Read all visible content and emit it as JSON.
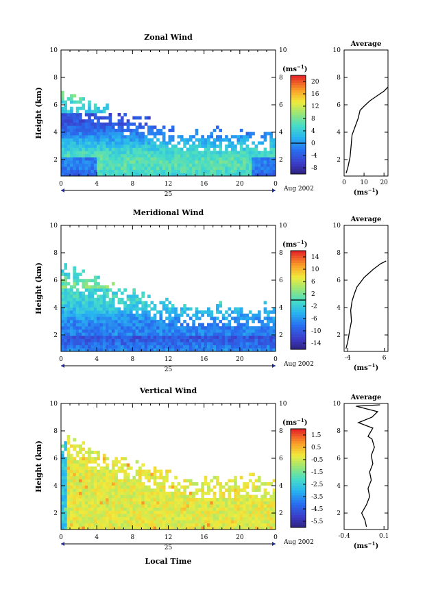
{
  "figure": {
    "xlabel": "Local Time",
    "date_label": "Aug 2002",
    "day_label": "25",
    "colorbar_unit": "(ms",
    "colorbar_exp": "−1",
    "avg_unit": "(ms",
    "avg_exp": "−1",
    "ylabel": "Height (km)"
  },
  "chart_data": [
    {
      "type": "heatmap",
      "title": "Zonal Wind",
      "ylabel": "Height (km)",
      "xlabel": "Local Time",
      "x_ticks": [
        "0",
        "4",
        "8",
        "12",
        "16",
        "20",
        "0"
      ],
      "y_ticks": [
        "2",
        "4",
        "6",
        "8",
        "10"
      ],
      "xlim": [
        0,
        24
      ],
      "ylim": [
        0.8,
        10
      ],
      "colorbar": {
        "ticks": [
          "20",
          "16",
          "12",
          "8",
          "4",
          "0",
          "-4",
          "-8"
        ],
        "range": [
          -10,
          22
        ],
        "contour_level": 0
      },
      "average_profile": {
        "title": "Average",
        "x_ticks": [
          "0",
          "10",
          "20"
        ],
        "xlim": [
          0,
          22
        ],
        "points": [
          [
            1,
            1.0
          ],
          [
            2,
            1.5
          ],
          [
            3,
            2.2
          ],
          [
            3.5,
            3.0
          ],
          [
            4,
            3.8
          ],
          [
            5.5,
            4.4
          ],
          [
            7,
            5.0
          ],
          [
            8,
            5.6
          ],
          [
            10,
            5.9
          ],
          [
            13,
            6.3
          ],
          [
            16,
            6.6
          ],
          [
            20,
            7.0
          ],
          [
            22,
            7.3
          ]
        ]
      }
    },
    {
      "type": "heatmap",
      "title": "Meridional Wind",
      "ylabel": "Height (km)",
      "xlabel": "Local Time",
      "x_ticks": [
        "0",
        "4",
        "8",
        "12",
        "16",
        "20",
        "0"
      ],
      "y_ticks": [
        "2",
        "4",
        "6",
        "8",
        "10"
      ],
      "xlim": [
        0,
        24
      ],
      "ylim": [
        0.8,
        10
      ],
      "colorbar": {
        "ticks": [
          "14",
          "10",
          "6",
          "2",
          "-2",
          "-6",
          "-10",
          "-14"
        ],
        "range": [
          -16,
          16
        ],
        "contour_level": 0
      },
      "average_profile": {
        "title": "Average",
        "x_ticks": [
          "-4",
          "6"
        ],
        "xlim": [
          -5,
          7
        ],
        "points": [
          [
            -4.5,
            1.0
          ],
          [
            -4,
            1.5
          ],
          [
            -3.5,
            2.3
          ],
          [
            -3,
            3.0
          ],
          [
            -3.2,
            3.8
          ],
          [
            -2.8,
            4.5
          ],
          [
            -2.2,
            5.0
          ],
          [
            -1.5,
            5.5
          ],
          [
            0.5,
            6.2
          ],
          [
            3,
            6.8
          ],
          [
            5,
            7.2
          ],
          [
            6.5,
            7.4
          ]
        ]
      }
    },
    {
      "type": "heatmap",
      "title": "Vertical Wind",
      "ylabel": "Height (km)",
      "xlabel": "Local Time",
      "x_ticks": [
        "0",
        "4",
        "8",
        "12",
        "16",
        "20",
        "0"
      ],
      "y_ticks": [
        "2",
        "4",
        "6",
        "8",
        "10"
      ],
      "xlim": [
        0,
        24
      ],
      "ylim": [
        0.8,
        10
      ],
      "colorbar": {
        "ticks": [
          "1.5",
          "0.5",
          "-0.5",
          "-1.5",
          "-2.5",
          "-3.5",
          "-4.5",
          "-5.5"
        ],
        "range": [
          -6,
          2
        ]
      },
      "average_profile": {
        "title": "Average",
        "x_ticks": [
          "-0.4",
          "0.1"
        ],
        "xlim": [
          -0.4,
          0.15
        ],
        "points": [
          [
            -0.12,
            1.0
          ],
          [
            -0.14,
            1.5
          ],
          [
            -0.18,
            2.0
          ],
          [
            -0.12,
            2.6
          ],
          [
            -0.08,
            3.2
          ],
          [
            -0.1,
            3.8
          ],
          [
            -0.06,
            4.4
          ],
          [
            -0.08,
            5.0
          ],
          [
            -0.04,
            5.6
          ],
          [
            -0.06,
            6.2
          ],
          [
            -0.02,
            6.8
          ],
          [
            -0.05,
            7.4
          ],
          [
            -0.1,
            7.6
          ],
          [
            -0.04,
            8.2
          ],
          [
            -0.22,
            8.6
          ],
          [
            -0.05,
            9.0
          ],
          [
            0.02,
            9.4
          ],
          [
            -0.25,
            9.8
          ],
          [
            0.05,
            9.9
          ]
        ]
      }
    }
  ]
}
